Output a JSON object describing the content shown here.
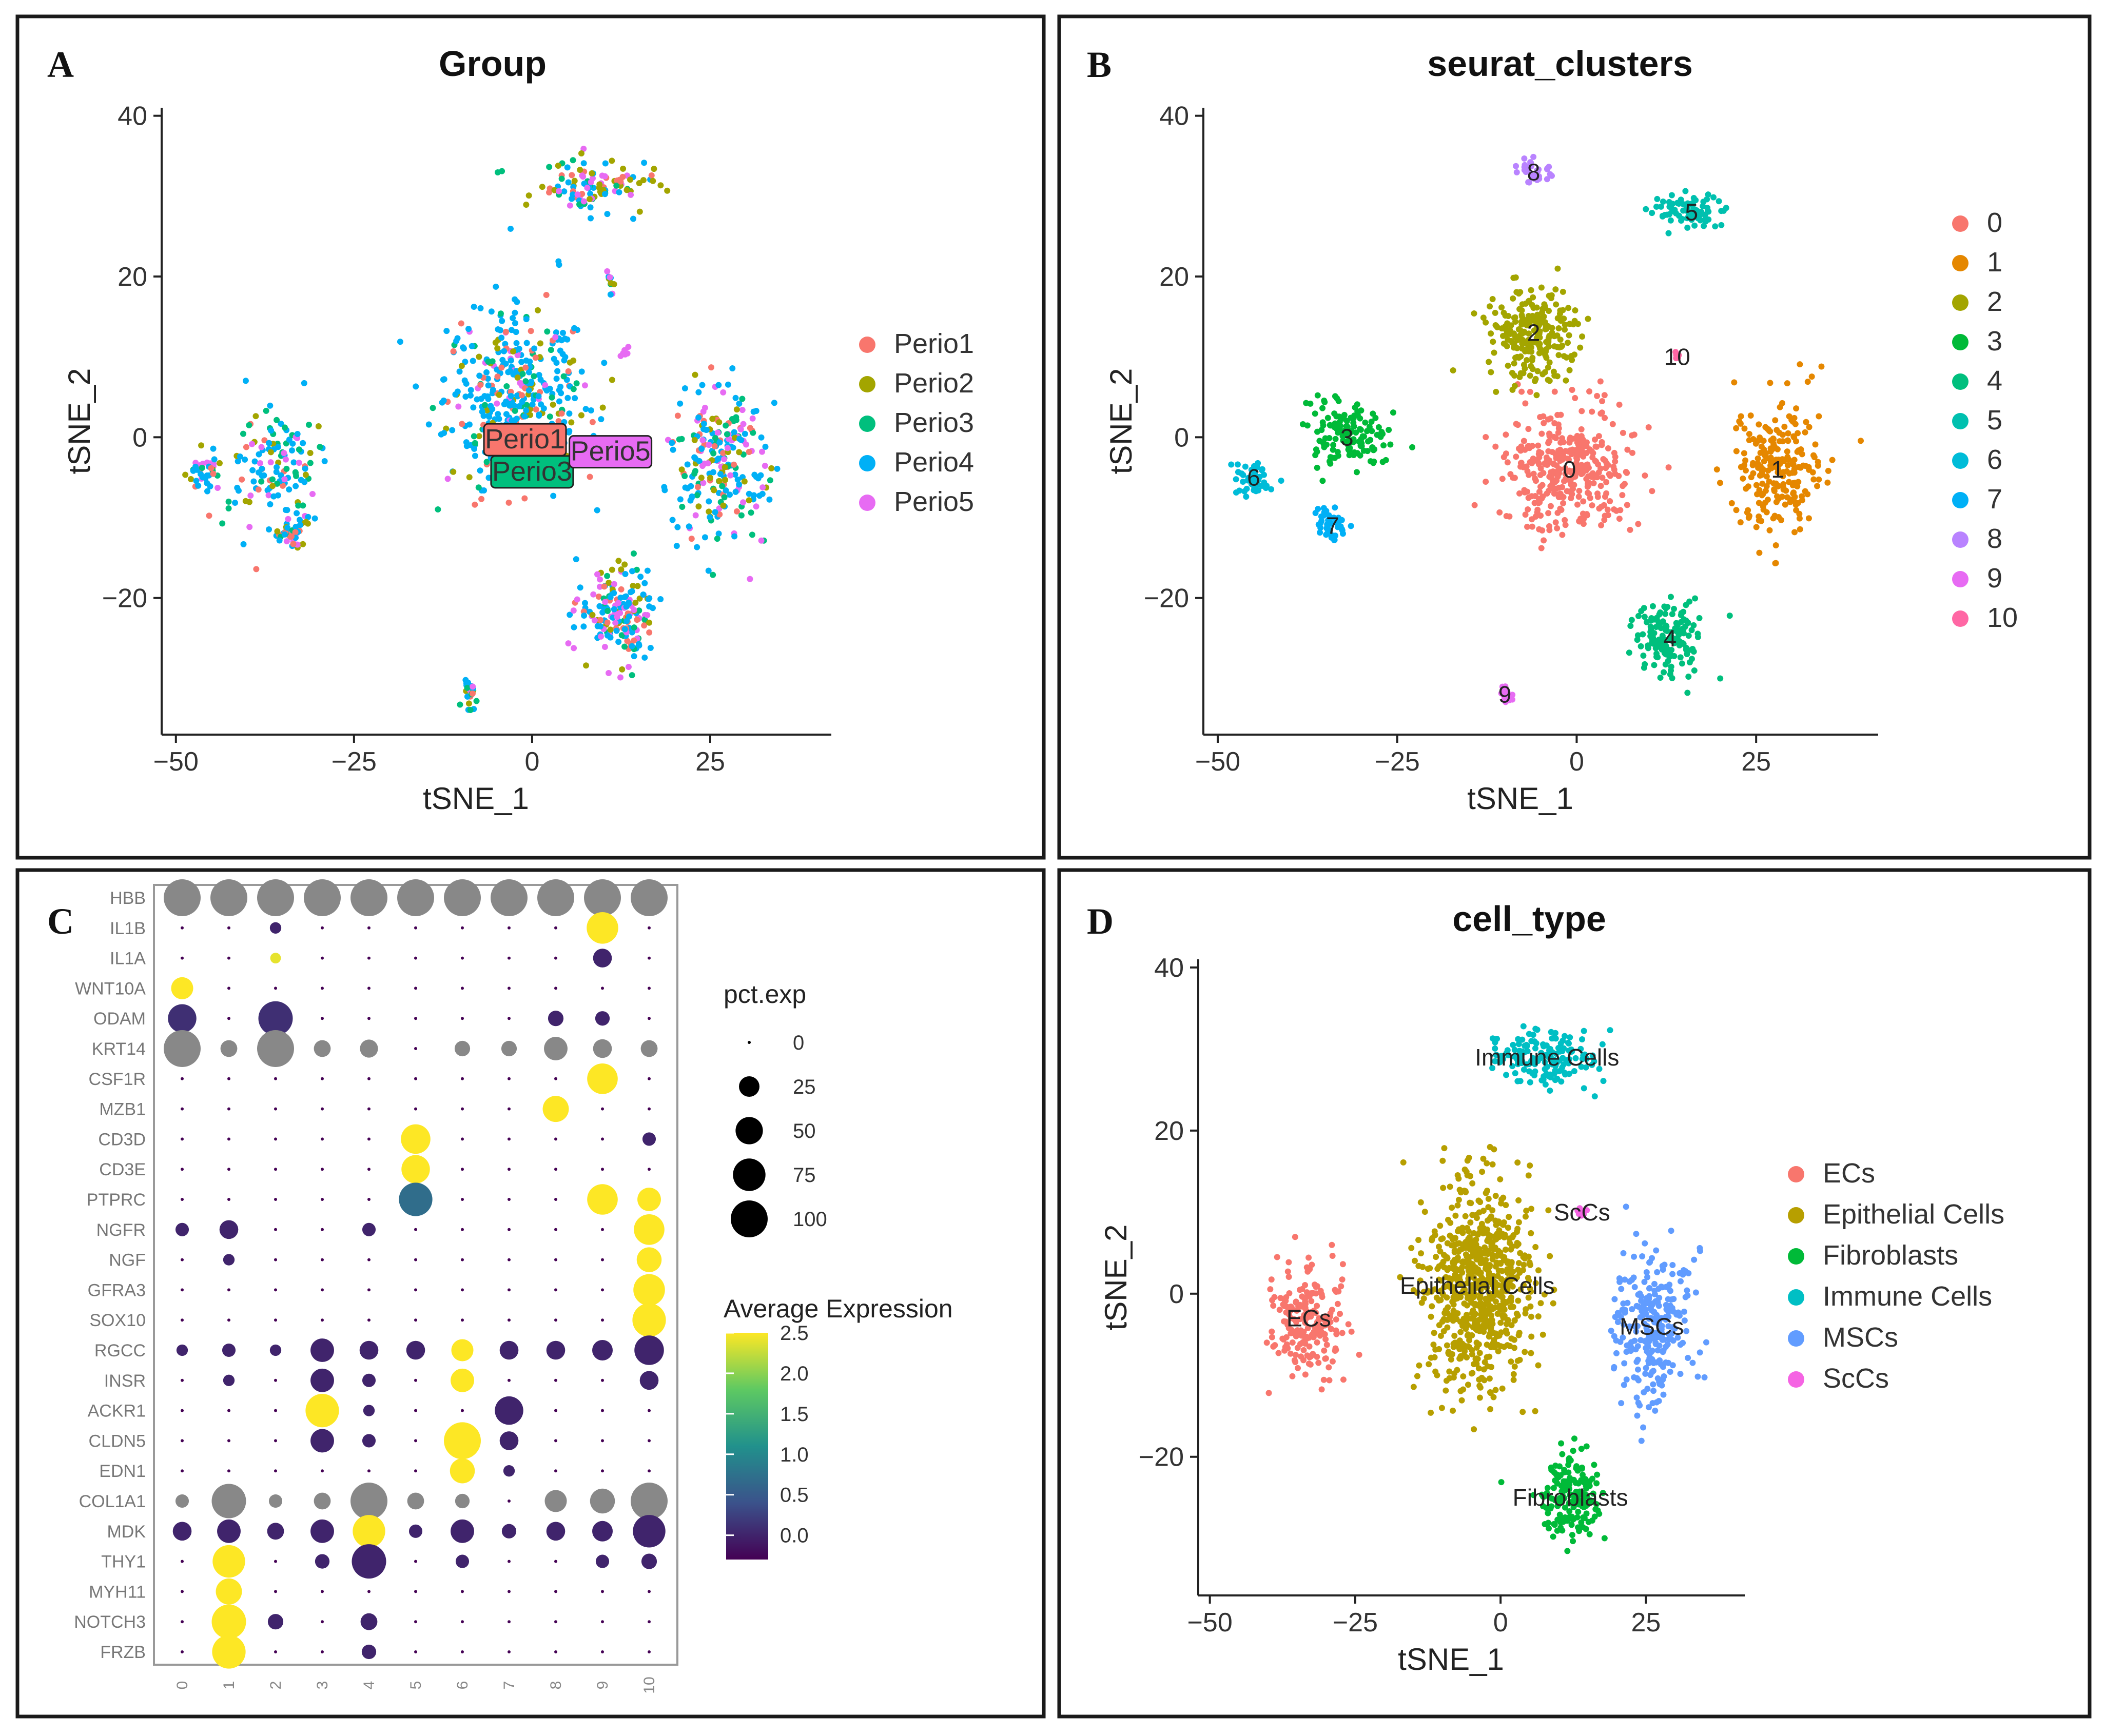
{
  "figure": {
    "panels": [
      "A",
      "B",
      "C",
      "D"
    ]
  },
  "chart_data": [
    {
      "panel": "A",
      "type": "scatter",
      "title": "Group",
      "xlabel": "tSNE_1",
      "ylabel": "tSNE_2",
      "xlim": [
        -52,
        42
      ],
      "ylim": [
        -37,
        41
      ],
      "xticks": [
        -50,
        -25,
        0,
        25
      ],
      "yticks": [
        -20,
        0,
        20,
        40
      ],
      "legend_position": "right",
      "series": [
        {
          "name": "Perio1",
          "color": "#F8766D"
        },
        {
          "name": "Perio2",
          "color": "#A3A500"
        },
        {
          "name": "Perio3",
          "color": "#00BF7D"
        },
        {
          "name": "Perio4",
          "color": "#00B0F6"
        },
        {
          "name": "Perio5",
          "color": "#E76BF3"
        }
      ],
      "annotations": [
        {
          "text": "Perio1",
          "x": -1,
          "y": -0.5,
          "color": "#F8766D"
        },
        {
          "text": "Perio3",
          "x": 0,
          "y": -4.5,
          "color": "#00BF7D"
        },
        {
          "text": "Perio5",
          "x": 11,
          "y": -2,
          "color": "#E76BF3"
        }
      ],
      "clusters": [
        {
          "x": -2,
          "y": 5,
          "sx": 9,
          "sy": 10,
          "n": 420,
          "mix": [
            1,
            1,
            1,
            5,
            0.5
          ]
        },
        {
          "x": 26,
          "y": -3,
          "sx": 6,
          "sy": 9,
          "n": 240,
          "mix": [
            1,
            1,
            1.2,
            3,
            0.8
          ]
        },
        {
          "x": 12,
          "y": -22,
          "sx": 5,
          "sy": 6,
          "n": 180,
          "mix": [
            1,
            1,
            0.5,
            3,
            2
          ]
        },
        {
          "x": -36,
          "y": -4,
          "sx": 6,
          "sy": 6,
          "n": 130,
          "mix": [
            1,
            1,
            2,
            4,
            1
          ]
        },
        {
          "x": -46,
          "y": -4,
          "sx": 2,
          "sy": 2,
          "n": 40,
          "mix": [
            1,
            1,
            1,
            3,
            0.5
          ]
        },
        {
          "x": -34,
          "y": -12,
          "sx": 2,
          "sy": 2,
          "n": 40,
          "mix": [
            1,
            1,
            1,
            3,
            1
          ]
        },
        {
          "x": 9,
          "y": 31,
          "sx": 8,
          "sy": 3,
          "n": 110,
          "mix": [
            1,
            2,
            1,
            3,
            2
          ]
        },
        {
          "x": 11,
          "y": 19,
          "sx": 0.6,
          "sy": 2,
          "n": 10,
          "mix": [
            1,
            1,
            1,
            1,
            1
          ]
        },
        {
          "x": 13,
          "y": 10.5,
          "sx": 0.6,
          "sy": 0.6,
          "n": 8,
          "mix": [
            0,
            0,
            0,
            0,
            1
          ]
        },
        {
          "x": -9,
          "y": -32,
          "sx": 0.8,
          "sy": 1.5,
          "n": 25,
          "mix": [
            0.5,
            1,
            2,
            3,
            1
          ]
        }
      ]
    },
    {
      "panel": "B",
      "type": "scatter",
      "title": "seurat_clusters",
      "xlabel": "tSNE_1",
      "ylabel": "tSNE_2",
      "xlim": [
        -52,
        42
      ],
      "ylim": [
        -37,
        41
      ],
      "xticks": [
        -50,
        -25,
        0,
        25
      ],
      "yticks": [
        -20,
        0,
        20,
        40
      ],
      "legend_position": "right",
      "series": [
        {
          "name": "0",
          "color": "#F8766D",
          "label_x": -1,
          "label_y": -4,
          "sx": 8,
          "sy": 7,
          "n": 360
        },
        {
          "name": "1",
          "color": "#E58700",
          "label_x": 28,
          "label_y": -4,
          "sx": 5.5,
          "sy": 8,
          "n": 230
        },
        {
          "name": "2",
          "color": "#A3A500",
          "label_x": -6,
          "label_y": 13,
          "sx": 6,
          "sy": 5,
          "n": 230
        },
        {
          "name": "3",
          "color": "#00BA38",
          "label_x": -32,
          "label_y": 0,
          "sx": 5,
          "sy": 4,
          "n": 140
        },
        {
          "name": "4",
          "color": "#00BF7D",
          "label_x": 13,
          "label_y": -25,
          "sx": 4,
          "sy": 4,
          "n": 150
        },
        {
          "name": "5",
          "color": "#00C0AF",
          "label_x": 16,
          "label_y": 28,
          "sx": 5,
          "sy": 2,
          "n": 80
        },
        {
          "name": "6",
          "color": "#00BCD8",
          "label_x": -45,
          "label_y": -5,
          "sx": 2.5,
          "sy": 2,
          "n": 50
        },
        {
          "name": "7",
          "color": "#00B0F6",
          "label_x": -34,
          "label_y": -11,
          "sx": 2,
          "sy": 1.8,
          "n": 45
        },
        {
          "name": "8",
          "color": "#B983FF",
          "label_x": -6,
          "label_y": 33,
          "sx": 2,
          "sy": 1.5,
          "n": 35
        },
        {
          "name": "9",
          "color": "#E76BF3",
          "label_x": -10,
          "label_y": -32,
          "sx": 0.7,
          "sy": 1,
          "n": 25
        },
        {
          "name": "10",
          "color": "#FF67A4",
          "label_x": 14,
          "label_y": 10,
          "sx": 0.5,
          "sy": 0.6,
          "n": 8
        }
      ]
    },
    {
      "panel": "C",
      "type": "dotplot",
      "genes": [
        "HBB",
        "IL1B",
        "IL1A",
        "WNT10A",
        "ODAM",
        "KRT14",
        "CSF1R",
        "MZB1",
        "CD3D",
        "CD3E",
        "PTPRC",
        "NGFR",
        "NGF",
        "GFRA3",
        "SOX10",
        "RGCC",
        "INSR",
        "ACKR1",
        "CLDN5",
        "EDN1",
        "COL1A1",
        "MDK",
        "THY1",
        "MYH11",
        "NOTCH3",
        "FRZB"
      ],
      "categories": [
        "0",
        "1",
        "2",
        "3",
        "4",
        "5",
        "6",
        "7",
        "8",
        "9",
        "10"
      ],
      "size_legend_title": "pct.exp",
      "size_legend_values": [
        0,
        25,
        50,
        75,
        100
      ],
      "color_legend_title": "Average Expression",
      "color_legend_ticks": [
        "2.5",
        "2.0",
        "1.5",
        "1.0",
        "0.5",
        "0.0"
      ],
      "color_range": [
        -0.3,
        2.5
      ],
      "notes": "gray dots = values outside color scale",
      "cells": [
        {
          "g": "HBB",
          "c": "0",
          "pct": 100,
          "avg": "na"
        },
        {
          "g": "HBB",
          "c": "1",
          "pct": 100,
          "avg": "na"
        },
        {
          "g": "HBB",
          "c": "2",
          "pct": 100,
          "avg": "na"
        },
        {
          "g": "HBB",
          "c": "3",
          "pct": 100,
          "avg": "na"
        },
        {
          "g": "HBB",
          "c": "4",
          "pct": 100,
          "avg": "na"
        },
        {
          "g": "HBB",
          "c": "5",
          "pct": 100,
          "avg": "na"
        },
        {
          "g": "HBB",
          "c": "6",
          "pct": 100,
          "avg": "na"
        },
        {
          "g": "HBB",
          "c": "7",
          "pct": 100,
          "avg": "na"
        },
        {
          "g": "HBB",
          "c": "8",
          "pct": 100,
          "avg": "na"
        },
        {
          "g": "HBB",
          "c": "9",
          "pct": 100,
          "avg": "na"
        },
        {
          "g": "HBB",
          "c": "10",
          "pct": 100,
          "avg": "na"
        },
        {
          "g": "IL1B",
          "c": "2",
          "pct": 5,
          "avg": 0
        },
        {
          "g": "IL1B",
          "c": "9",
          "pct": 70,
          "avg": 2.5
        },
        {
          "g": "IL1A",
          "c": "2",
          "pct": 4,
          "avg": 2.4
        },
        {
          "g": "IL1A",
          "c": "9",
          "pct": 20,
          "avg": 0
        },
        {
          "g": "WNT10A",
          "c": "0",
          "pct": 30,
          "avg": 2.5
        },
        {
          "g": "ODAM",
          "c": "0",
          "pct": 55,
          "avg": 0.1
        },
        {
          "g": "ODAM",
          "c": "2",
          "pct": 85,
          "avg": 0.1
        },
        {
          "g": "ODAM",
          "c": "8",
          "pct": 12,
          "avg": 0
        },
        {
          "g": "ODAM",
          "c": "9",
          "pct": 10,
          "avg": 0
        },
        {
          "g": "KRT14",
          "c": "0",
          "pct": 100,
          "avg": "na"
        },
        {
          "g": "KRT14",
          "c": "1",
          "pct": 15,
          "avg": "na"
        },
        {
          "g": "KRT14",
          "c": "2",
          "pct": 100,
          "avg": "na"
        },
        {
          "g": "KRT14",
          "c": "3",
          "pct": 15,
          "avg": "na"
        },
        {
          "g": "KRT14",
          "c": "4",
          "pct": 18,
          "avg": "na"
        },
        {
          "g": "KRT14",
          "c": "6",
          "pct": 12,
          "avg": "na"
        },
        {
          "g": "KRT14",
          "c": "7",
          "pct": 12,
          "avg": "na"
        },
        {
          "g": "KRT14",
          "c": "8",
          "pct": 35,
          "avg": "na"
        },
        {
          "g": "KRT14",
          "c": "9",
          "pct": 20,
          "avg": "na"
        },
        {
          "g": "KRT14",
          "c": "10",
          "pct": 15,
          "avg": "na"
        },
        {
          "g": "CSF1R",
          "c": "9",
          "pct": 65,
          "avg": 2.5
        },
        {
          "g": "MZB1",
          "c": "8",
          "pct": 45,
          "avg": 2.5
        },
        {
          "g": "CD3D",
          "c": "5",
          "pct": 60,
          "avg": 2.5
        },
        {
          "g": "CD3D",
          "c": "10",
          "pct": 8,
          "avg": 0
        },
        {
          "g": "CD3E",
          "c": "5",
          "pct": 55,
          "avg": 2.5
        },
        {
          "g": "PTPRC",
          "c": "5",
          "pct": 80,
          "avg": 0.7
        },
        {
          "g": "PTPRC",
          "c": "9",
          "pct": 65,
          "avg": 2.5
        },
        {
          "g": "PTPRC",
          "c": "10",
          "pct": 35,
          "avg": 2.5
        },
        {
          "g": "NGFR",
          "c": "0",
          "pct": 8,
          "avg": 0
        },
        {
          "g": "NGFR",
          "c": "1",
          "pct": 20,
          "avg": 0
        },
        {
          "g": "NGFR",
          "c": "4",
          "pct": 8,
          "avg": 0
        },
        {
          "g": "NGFR",
          "c": "10",
          "pct": 65,
          "avg": 2.5
        },
        {
          "g": "NGF",
          "c": "1",
          "pct": 5,
          "avg": 0
        },
        {
          "g": "NGF",
          "c": "10",
          "pct": 40,
          "avg": 2.5
        },
        {
          "g": "GFRA3",
          "c": "10",
          "pct": 70,
          "avg": 2.5
        },
        {
          "g": "SOX10",
          "c": "10",
          "pct": 80,
          "avg": 2.5
        },
        {
          "g": "RGCC",
          "c": "0",
          "pct": 5,
          "avg": 0
        },
        {
          "g": "RGCC",
          "c": "1",
          "pct": 8,
          "avg": 0
        },
        {
          "g": "RGCC",
          "c": "2",
          "pct": 5,
          "avg": 0
        },
        {
          "g": "RGCC",
          "c": "3",
          "pct": 35,
          "avg": 0
        },
        {
          "g": "RGCC",
          "c": "4",
          "pct": 20,
          "avg": 0
        },
        {
          "g": "RGCC",
          "c": "5",
          "pct": 20,
          "avg": 0
        },
        {
          "g": "RGCC",
          "c": "6",
          "pct": 30,
          "avg": 2.5
        },
        {
          "g": "RGCC",
          "c": "7",
          "pct": 20,
          "avg": 0
        },
        {
          "g": "RGCC",
          "c": "8",
          "pct": 20,
          "avg": 0
        },
        {
          "g": "RGCC",
          "c": "9",
          "pct": 25,
          "avg": 0
        },
        {
          "g": "RGCC",
          "c": "10",
          "pct": 60,
          "avg": 0
        },
        {
          "g": "INSR",
          "c": "1",
          "pct": 5,
          "avg": 0
        },
        {
          "g": "INSR",
          "c": "3",
          "pct": 35,
          "avg": 0
        },
        {
          "g": "INSR",
          "c": "4",
          "pct": 8,
          "avg": 0
        },
        {
          "g": "INSR",
          "c": "6",
          "pct": 35,
          "avg": 2.5
        },
        {
          "g": "INSR",
          "c": "10",
          "pct": 20,
          "avg": 0
        },
        {
          "g": "ACKR1",
          "c": "3",
          "pct": 80,
          "avg": 2.5
        },
        {
          "g": "ACKR1",
          "c": "4",
          "pct": 5,
          "avg": 0
        },
        {
          "g": "ACKR1",
          "c": "7",
          "pct": 55,
          "avg": 0
        },
        {
          "g": "CLDN5",
          "c": "3",
          "pct": 35,
          "avg": 0
        },
        {
          "g": "CLDN5",
          "c": "4",
          "pct": 8,
          "avg": 0
        },
        {
          "g": "CLDN5",
          "c": "6",
          "pct": 100,
          "avg": 2.5
        },
        {
          "g": "CLDN5",
          "c": "7",
          "pct": 20,
          "avg": 0
        },
        {
          "g": "EDN1",
          "c": "6",
          "pct": 40,
          "avg": 2.5
        },
        {
          "g": "EDN1",
          "c": "7",
          "pct": 5,
          "avg": 0
        },
        {
          "g": "COL1A1",
          "c": "0",
          "pct": 8,
          "avg": "na"
        },
        {
          "g": "COL1A1",
          "c": "1",
          "pct": 85,
          "avg": "na"
        },
        {
          "g": "COL1A1",
          "c": "2",
          "pct": 8,
          "avg": "na"
        },
        {
          "g": "COL1A1",
          "c": "3",
          "pct": 15,
          "avg": "na"
        },
        {
          "g": "COL1A1",
          "c": "4",
          "pct": 100,
          "avg": "na"
        },
        {
          "g": "COL1A1",
          "c": "5",
          "pct": 15,
          "avg": "na"
        },
        {
          "g": "COL1A1",
          "c": "6",
          "pct": 10,
          "avg": "na"
        },
        {
          "g": "COL1A1",
          "c": "8",
          "pct": 30,
          "avg": "na"
        },
        {
          "g": "COL1A1",
          "c": "9",
          "pct": 40,
          "avg": "na"
        },
        {
          "g": "COL1A1",
          "c": "10",
          "pct": 100,
          "avg": "na"
        },
        {
          "g": "MDK",
          "c": "0",
          "pct": 20,
          "avg": 0
        },
        {
          "g": "MDK",
          "c": "1",
          "pct": 35,
          "avg": 0
        },
        {
          "g": "MDK",
          "c": "2",
          "pct": 15,
          "avg": 0
        },
        {
          "g": "MDK",
          "c": "3",
          "pct": 35,
          "avg": 0
        },
        {
          "g": "MDK",
          "c": "4",
          "pct": 75,
          "avg": 2.5
        },
        {
          "g": "MDK",
          "c": "5",
          "pct": 8,
          "avg": 0
        },
        {
          "g": "MDK",
          "c": "6",
          "pct": 35,
          "avg": 0
        },
        {
          "g": "MDK",
          "c": "7",
          "pct": 10,
          "avg": 0
        },
        {
          "g": "MDK",
          "c": "8",
          "pct": 20,
          "avg": 0
        },
        {
          "g": "MDK",
          "c": "9",
          "pct": 25,
          "avg": 0
        },
        {
          "g": "MDK",
          "c": "10",
          "pct": 75,
          "avg": 0
        },
        {
          "g": "THY1",
          "c": "1",
          "pct": 75,
          "avg": 2.5
        },
        {
          "g": "THY1",
          "c": "3",
          "pct": 10,
          "avg": 0
        },
        {
          "g": "THY1",
          "c": "4",
          "pct": 85,
          "avg": 0
        },
        {
          "g": "THY1",
          "c": "6",
          "pct": 8,
          "avg": 0
        },
        {
          "g": "THY1",
          "c": "9",
          "pct": 8,
          "avg": 0
        },
        {
          "g": "THY1",
          "c": "10",
          "pct": 12,
          "avg": 0
        },
        {
          "g": "MYH11",
          "c": "1",
          "pct": 45,
          "avg": 2.5
        },
        {
          "g": "NOTCH3",
          "c": "1",
          "pct": 85,
          "avg": 2.5
        },
        {
          "g": "NOTCH3",
          "c": "2",
          "pct": 12,
          "avg": 0
        },
        {
          "g": "NOTCH3",
          "c": "4",
          "pct": 15,
          "avg": 0
        },
        {
          "g": "FRZB",
          "c": "1",
          "pct": 80,
          "avg": 2.5
        },
        {
          "g": "FRZB",
          "c": "4",
          "pct": 10,
          "avg": 0
        }
      ]
    },
    {
      "panel": "D",
      "type": "scatter",
      "title": "cell_type",
      "xlabel": "tSNE_1",
      "ylabel": "tSNE_2",
      "xlim": [
        -52,
        42
      ],
      "ylim": [
        -37,
        41
      ],
      "xticks": [
        -50,
        -25,
        0,
        25
      ],
      "yticks": [
        -20,
        0,
        20,
        40
      ],
      "legend_position": "right",
      "series": [
        {
          "name": "ECs",
          "color": "#F8766D",
          "label_x": -33,
          "label_y": -3,
          "sx": 5.5,
          "sy": 6,
          "n": 200
        },
        {
          "name": "Epithelial Cells",
          "color": "#B79F00",
          "label_x": -4,
          "label_y": 1,
          "sx": 8.5,
          "sy": 11,
          "n": 720
        },
        {
          "name": "Fibroblasts",
          "color": "#00BA38",
          "label_x": 12,
          "label_y": -25,
          "sx": 4.5,
          "sy": 4.5,
          "n": 170
        },
        {
          "name": "Immune Cells",
          "color": "#00BFC4",
          "label_x": 8,
          "label_y": 29,
          "sx": 8,
          "sy": 3,
          "n": 150
        },
        {
          "name": "MSCs",
          "color": "#619CFF",
          "label_x": 26,
          "label_y": -4,
          "sx": 6,
          "sy": 8.5,
          "n": 260
        },
        {
          "name": "ScCs",
          "color": "#F564E3",
          "label_x": 14,
          "label_y": 10,
          "sx": 0.6,
          "sy": 0.6,
          "n": 10
        }
      ]
    }
  ]
}
